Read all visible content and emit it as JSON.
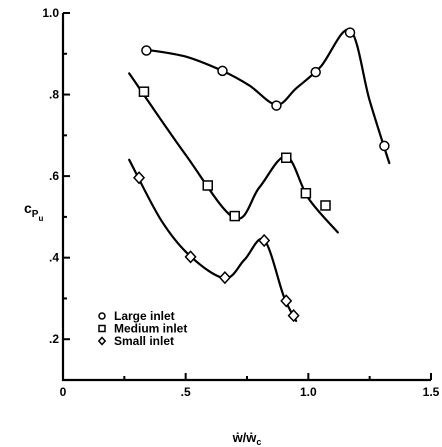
{
  "chart_data": {
    "type": "line",
    "xlabel": "ẇ/ẇ",
    "xlabel_sub": "c",
    "ylabel": "c",
    "ylabel_sub": "P",
    "ylabel_subsub": "u",
    "xlim": [
      0,
      1.5
    ],
    "ylim": [
      0.1,
      1.0
    ],
    "xticks": [
      0,
      0.5,
      1.0,
      1.5
    ],
    "xtick_labels": [
      "0",
      ".5",
      "1.0",
      "1.5"
    ],
    "yticks": [
      0.2,
      0.4,
      0.6,
      0.8,
      1.0
    ],
    "ytick_labels": [
      ".2",
      ".4",
      ".6",
      ".8",
      "1.0"
    ],
    "legend_position": "lower-left",
    "series": [
      {
        "name": "Large inlet",
        "marker": "circle",
        "points": [
          {
            "x": 0.34,
            "y": 0.908
          },
          {
            "x": 0.65,
            "y": 0.858
          },
          {
            "x": 0.87,
            "y": 0.773
          },
          {
            "x": 1.03,
            "y": 0.855
          },
          {
            "x": 1.17,
            "y": 0.952
          },
          {
            "x": 1.31,
            "y": 0.674
          }
        ],
        "curve": [
          {
            "x": 0.34,
            "y": 0.91
          },
          {
            "x": 0.5,
            "y": 0.893
          },
          {
            "x": 0.65,
            "y": 0.858
          },
          {
            "x": 0.76,
            "y": 0.822
          },
          {
            "x": 0.87,
            "y": 0.775
          },
          {
            "x": 0.95,
            "y": 0.815
          },
          {
            "x": 1.05,
            "y": 0.868
          },
          {
            "x": 1.17,
            "y": 0.958
          },
          {
            "x": 1.25,
            "y": 0.785
          },
          {
            "x": 1.33,
            "y": 0.632
          }
        ]
      },
      {
        "name": "Medium inlet",
        "marker": "square",
        "points": [
          {
            "x": 0.33,
            "y": 0.807
          },
          {
            "x": 0.59,
            "y": 0.577
          },
          {
            "x": 0.7,
            "y": 0.502
          },
          {
            "x": 0.91,
            "y": 0.645
          },
          {
            "x": 0.99,
            "y": 0.558
          },
          {
            "x": 1.07,
            "y": 0.528
          }
        ],
        "curve": [
          {
            "x": 0.27,
            "y": 0.852
          },
          {
            "x": 0.5,
            "y": 0.652
          },
          {
            "x": 0.7,
            "y": 0.497
          },
          {
            "x": 0.8,
            "y": 0.572
          },
          {
            "x": 0.91,
            "y": 0.648
          },
          {
            "x": 1.0,
            "y": 0.546
          },
          {
            "x": 1.12,
            "y": 0.462
          }
        ]
      },
      {
        "name": "Small inlet",
        "marker": "diamond",
        "points": [
          {
            "x": 0.31,
            "y": 0.596
          },
          {
            "x": 0.52,
            "y": 0.402
          },
          {
            "x": 0.66,
            "y": 0.351
          },
          {
            "x": 0.82,
            "y": 0.442
          },
          {
            "x": 0.91,
            "y": 0.294
          },
          {
            "x": 0.94,
            "y": 0.258
          }
        ],
        "curve": [
          {
            "x": 0.27,
            "y": 0.64
          },
          {
            "x": 0.4,
            "y": 0.492
          },
          {
            "x": 0.52,
            "y": 0.403
          },
          {
            "x": 0.66,
            "y": 0.35
          },
          {
            "x": 0.74,
            "y": 0.395
          },
          {
            "x": 0.82,
            "y": 0.443
          },
          {
            "x": 0.9,
            "y": 0.305
          },
          {
            "x": 0.95,
            "y": 0.245
          }
        ]
      }
    ]
  }
}
